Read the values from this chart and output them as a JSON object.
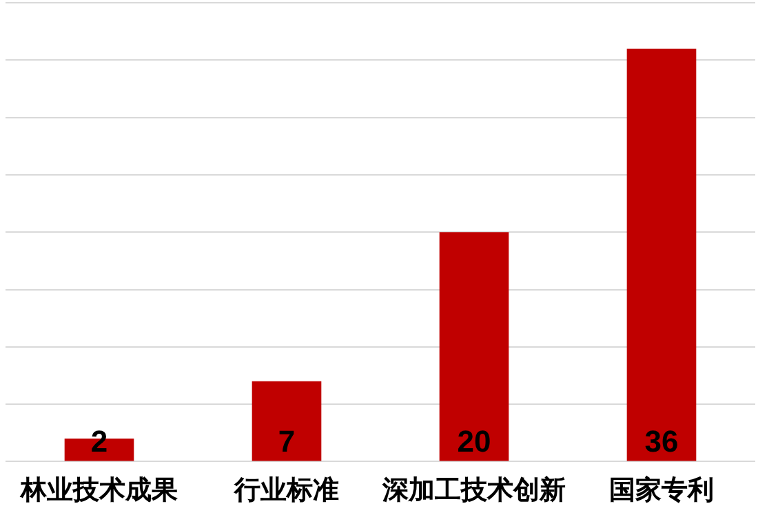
{
  "chart_data": {
    "type": "bar",
    "categories": [
      "林业技术成果",
      "行业标准",
      "深加工技术创新",
      "国家专利"
    ],
    "values": [
      2,
      7,
      20,
      36
    ],
    "color": "#c00000",
    "ylim": [
      0,
      40
    ],
    "yticks": [
      {
        "value": 0,
        "label": null
      },
      {
        "value": 5,
        "label": null
      },
      {
        "value": 10,
        "label": null
      },
      {
        "value": 15,
        "label": null
      },
      {
        "value": 20,
        "label": null
      },
      {
        "value": 25,
        "label": null
      },
      {
        "value": 30,
        "label": null
      },
      {
        "value": 35,
        "label": null
      },
      {
        "value": 40,
        "label": null
      }
    ],
    "tick_labels": "x",
    "grid": "y",
    "data_labels": true
  }
}
